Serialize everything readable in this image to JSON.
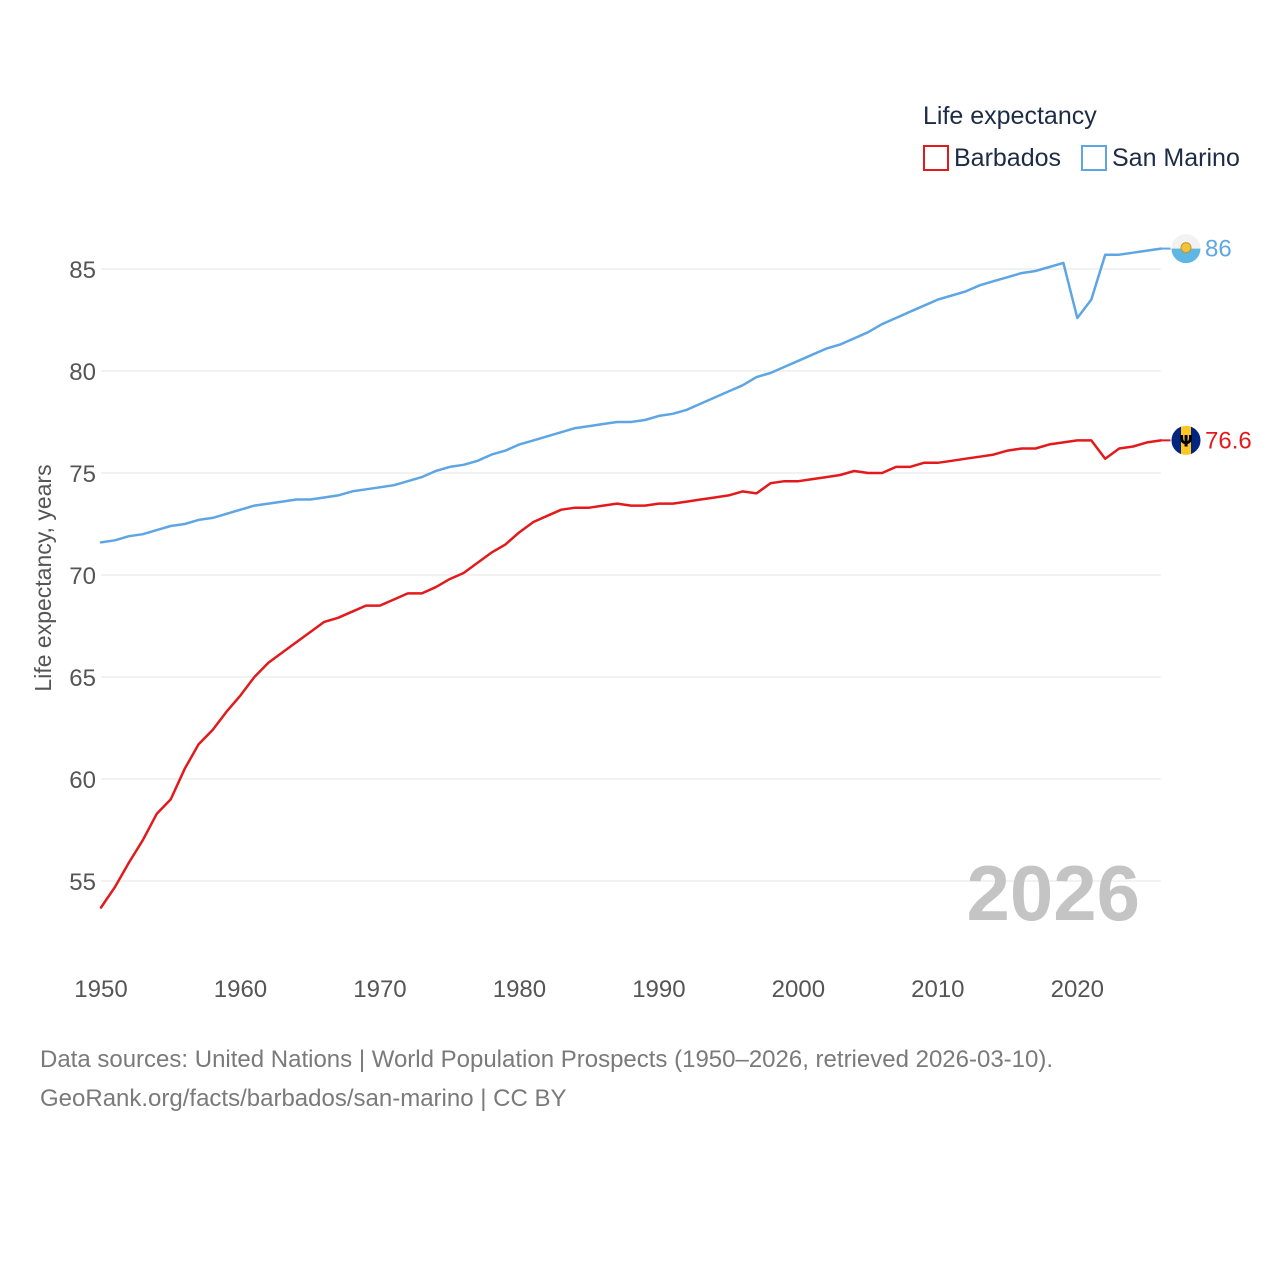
{
  "chart_data": {
    "type": "line",
    "legend_title": "Life expectancy",
    "ylabel": "Life expectancy, years",
    "xlabel": "",
    "xlim": [
      1950,
      2026
    ],
    "ylim": [
      53,
      88
    ],
    "yticks": [
      55,
      60,
      65,
      70,
      75,
      80,
      85
    ],
    "xticks": [
      1950,
      1960,
      1970,
      1980,
      1990,
      2000,
      2010,
      2020
    ],
    "year_label": "2026",
    "legend_position": "top-right",
    "x": [
      1950,
      1951,
      1952,
      1953,
      1954,
      1955,
      1956,
      1957,
      1958,
      1959,
      1960,
      1961,
      1962,
      1963,
      1964,
      1965,
      1966,
      1967,
      1968,
      1969,
      1970,
      1971,
      1972,
      1973,
      1974,
      1975,
      1976,
      1977,
      1978,
      1979,
      1980,
      1981,
      1982,
      1983,
      1984,
      1985,
      1986,
      1987,
      1988,
      1989,
      1990,
      1991,
      1992,
      1993,
      1994,
      1995,
      1996,
      1997,
      1998,
      1999,
      2000,
      2001,
      2002,
      2003,
      2004,
      2005,
      2006,
      2007,
      2008,
      2009,
      2010,
      2011,
      2012,
      2013,
      2014,
      2015,
      2016,
      2017,
      2018,
      2019,
      2020,
      2021,
      2022,
      2023,
      2024,
      2025,
      2026
    ],
    "series": [
      {
        "name": "Barbados",
        "color": "#e31a1c",
        "flag": "barbados-flag-icon",
        "end_label": "76.6",
        "values": [
          53.7,
          54.7,
          55.9,
          57.0,
          58.3,
          59.0,
          60.5,
          61.7,
          62.4,
          63.3,
          64.1,
          65.0,
          65.7,
          66.2,
          66.7,
          67.2,
          67.7,
          67.9,
          68.2,
          68.5,
          68.5,
          68.8,
          69.1,
          69.1,
          69.4,
          69.8,
          70.1,
          70.6,
          71.1,
          71.5,
          72.1,
          72.6,
          72.9,
          73.2,
          73.3,
          73.3,
          73.4,
          73.5,
          73.4,
          73.4,
          73.5,
          73.5,
          73.6,
          73.7,
          73.8,
          73.9,
          74.1,
          74.0,
          74.5,
          74.6,
          74.6,
          74.7,
          74.8,
          74.9,
          75.1,
          75.0,
          75.0,
          75.3,
          75.3,
          75.5,
          75.5,
          75.6,
          75.7,
          75.8,
          75.9,
          76.1,
          76.2,
          76.2,
          76.4,
          76.5,
          76.6,
          76.6,
          75.7,
          76.2,
          76.3,
          76.5,
          76.6
        ]
      },
      {
        "name": "San Marino",
        "color": "#5ea6e3",
        "flag": "san-marino-flag-icon",
        "end_label": "86",
        "values": [
          71.6,
          71.7,
          71.9,
          72.0,
          72.2,
          72.4,
          72.5,
          72.7,
          72.8,
          73.0,
          73.2,
          73.4,
          73.5,
          73.6,
          73.7,
          73.7,
          73.8,
          73.9,
          74.1,
          74.2,
          74.3,
          74.4,
          74.6,
          74.8,
          75.1,
          75.3,
          75.4,
          75.6,
          75.9,
          76.1,
          76.4,
          76.6,
          76.8,
          77.0,
          77.2,
          77.3,
          77.4,
          77.5,
          77.5,
          77.6,
          77.8,
          77.9,
          78.1,
          78.4,
          78.7,
          79.0,
          79.3,
          79.7,
          79.9,
          80.2,
          80.5,
          80.8,
          81.1,
          81.3,
          81.6,
          81.9,
          82.3,
          82.6,
          82.9,
          83.2,
          83.5,
          83.7,
          83.9,
          84.2,
          84.4,
          84.6,
          84.8,
          84.9,
          85.1,
          85.3,
          82.6,
          83.5,
          85.7,
          85.7,
          85.8,
          85.9,
          86.0
        ]
      }
    ]
  },
  "footer": {
    "line1": "Data sources: United Nations | World Population Prospects (1950–2026, retrieved 2026-03-10).",
    "line2": "GeoRank.org/facts/barbados/san-marino | CC BY"
  }
}
